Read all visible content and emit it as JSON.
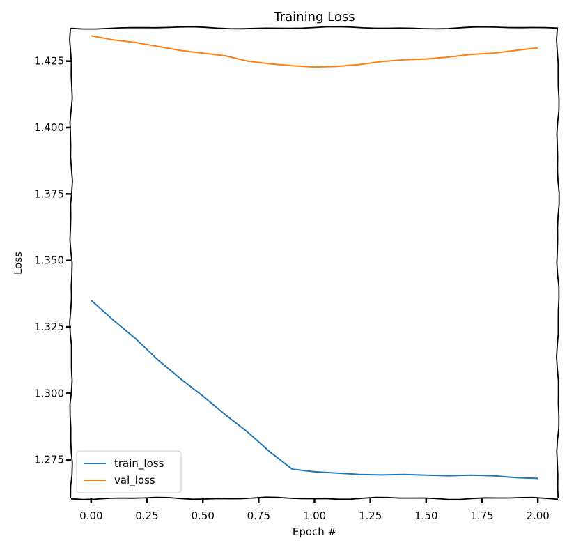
{
  "chart_data": {
    "type": "line",
    "title": "Training Loss",
    "xlabel": "Epoch #",
    "ylabel": "Loss",
    "xlim": [
      -0.09,
      2.09
    ],
    "ylim": [
      1.2605,
      1.4375
    ],
    "xticks": [
      0.0,
      0.25,
      0.5,
      0.75,
      1.0,
      1.25,
      1.5,
      1.75,
      2.0
    ],
    "xtick_labels": [
      "0.00",
      "0.25",
      "0.50",
      "0.75",
      "1.00",
      "1.25",
      "1.50",
      "1.75",
      "2.00"
    ],
    "yticks": [
      1.275,
      1.3,
      1.325,
      1.35,
      1.375,
      1.4,
      1.425
    ],
    "ytick_labels": [
      "1.275",
      "1.300",
      "1.325",
      "1.350",
      "1.375",
      "1.400",
      "1.425"
    ],
    "legend_position": "bottom-left",
    "grid": false,
    "series": [
      {
        "name": "train_loss",
        "color": "#1f77b4",
        "x": [
          0.0,
          0.1,
          0.2,
          0.3,
          0.4,
          0.5,
          0.6,
          0.7,
          0.8,
          0.9,
          1.0,
          1.1,
          1.2,
          1.3,
          1.4,
          1.5,
          1.6,
          1.7,
          1.8,
          1.9,
          2.0
        ],
        "y": [
          1.335,
          1.3275,
          1.3205,
          1.3125,
          1.3055,
          1.299,
          1.292,
          1.2855,
          1.278,
          1.2715,
          1.2705,
          1.27,
          1.2695,
          1.2693,
          1.2695,
          1.2692,
          1.269,
          1.2692,
          1.269,
          1.2683,
          1.268
        ]
      },
      {
        "name": "val_loss",
        "color": "#ff7f0e",
        "x": [
          0.0,
          0.1,
          0.2,
          0.3,
          0.4,
          0.5,
          0.6,
          0.7,
          0.8,
          0.9,
          1.0,
          1.1,
          1.2,
          1.3,
          1.4,
          1.5,
          1.6,
          1.7,
          1.8,
          1.9,
          2.0
        ],
        "y": [
          1.4345,
          1.433,
          1.432,
          1.4305,
          1.429,
          1.428,
          1.427,
          1.425,
          1.424,
          1.4233,
          1.4228,
          1.423,
          1.4237,
          1.4248,
          1.4255,
          1.4258,
          1.4265,
          1.4275,
          1.428,
          1.429,
          1.43
        ]
      }
    ]
  }
}
